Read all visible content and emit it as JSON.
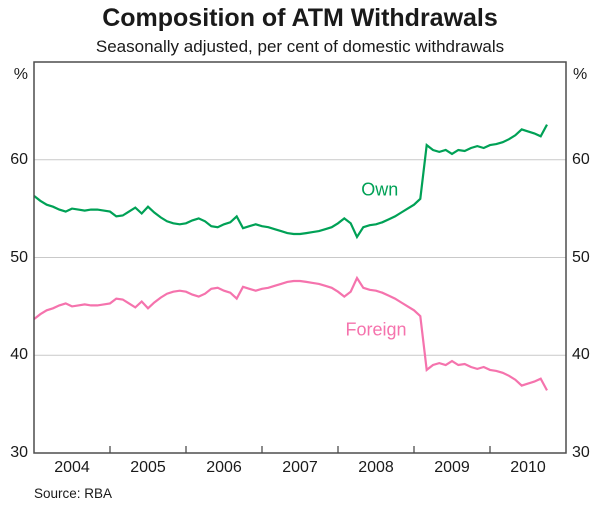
{
  "title": "Composition of ATM Withdrawals",
  "subtitle": "Seasonally adjusted, per cent of domestic withdrawals",
  "source": "Source: RBA",
  "colors": {
    "own_line": "#00a156",
    "foreign_line": "#f573ad",
    "grid": "#c9c9c9",
    "frame": "#4d4d4d",
    "text": "#1a1a1a"
  },
  "y_axis": {
    "unit": "%",
    "tick_labels": [
      30,
      40,
      50,
      60
    ],
    "min": 30,
    "max": 70,
    "shown_both_sides": true
  },
  "x_axis": {
    "year_labels": [
      "2004",
      "2005",
      "2006",
      "2007",
      "2008",
      "2009",
      "2010"
    ],
    "start_year": 2004,
    "end_year": 2011
  },
  "chart_data": {
    "type": "line",
    "title": "Composition of ATM Withdrawals",
    "subtitle": "Seasonally adjusted, per cent of domestic withdrawals",
    "xlabel": "",
    "ylabel": "%",
    "ylim": [
      30,
      70
    ],
    "grid": "horizontal",
    "legend_position": "inline-annotations",
    "x_frequency": "monthly",
    "x_start": "2004-01",
    "x_end": "2010-10",
    "series": [
      {
        "name": "Own",
        "color": "#00a156",
        "values": [
          56.3,
          55.8,
          55.4,
          55.2,
          54.9,
          54.7,
          55.0,
          54.9,
          54.8,
          54.9,
          54.9,
          54.8,
          54.7,
          54.2,
          54.3,
          54.7,
          55.1,
          54.5,
          55.2,
          54.6,
          54.1,
          53.7,
          53.5,
          53.4,
          53.5,
          53.8,
          54.0,
          53.7,
          53.2,
          53.1,
          53.4,
          53.6,
          54.2,
          53.0,
          53.2,
          53.4,
          53.2,
          53.1,
          52.9,
          52.7,
          52.5,
          52.4,
          52.4,
          52.5,
          52.6,
          52.7,
          52.9,
          53.1,
          53.5,
          54.0,
          53.5,
          52.1,
          53.1,
          53.3,
          53.4,
          53.6,
          53.9,
          54.2,
          54.6,
          55.0,
          55.4,
          56.0,
          61.5,
          61.0,
          60.8,
          61.0,
          60.6,
          61.0,
          60.9,
          61.2,
          61.4,
          61.2,
          61.5,
          61.6,
          61.8,
          62.1,
          62.5,
          63.1,
          62.9,
          62.7,
          62.4,
          63.6
        ]
      },
      {
        "name": "Foreign",
        "color": "#f573ad",
        "values": [
          43.7,
          44.2,
          44.6,
          44.8,
          45.1,
          45.3,
          45.0,
          45.1,
          45.2,
          45.1,
          45.1,
          45.2,
          45.3,
          45.8,
          45.7,
          45.3,
          44.9,
          45.5,
          44.8,
          45.4,
          45.9,
          46.3,
          46.5,
          46.6,
          46.5,
          46.2,
          46.0,
          46.3,
          46.8,
          46.9,
          46.6,
          46.4,
          45.8,
          47.0,
          46.8,
          46.6,
          46.8,
          46.9,
          47.1,
          47.3,
          47.5,
          47.6,
          47.6,
          47.5,
          47.4,
          47.3,
          47.1,
          46.9,
          46.5,
          46.0,
          46.5,
          47.9,
          46.9,
          46.7,
          46.6,
          46.4,
          46.1,
          45.8,
          45.4,
          45.0,
          44.6,
          44.0,
          38.5,
          39.0,
          39.2,
          39.0,
          39.4,
          39.0,
          39.1,
          38.8,
          38.6,
          38.8,
          38.5,
          38.4,
          38.2,
          37.9,
          37.5,
          36.9,
          37.1,
          37.3,
          37.6,
          36.4
        ]
      }
    ],
    "annotations": [
      {
        "label": "Own",
        "x_year": 2008.55,
        "y_value": 56.9,
        "color": "#00a156"
      },
      {
        "label": "Foreign",
        "x_year": 2008.5,
        "y_value": 42.6,
        "color": "#f573ad"
      }
    ]
  }
}
